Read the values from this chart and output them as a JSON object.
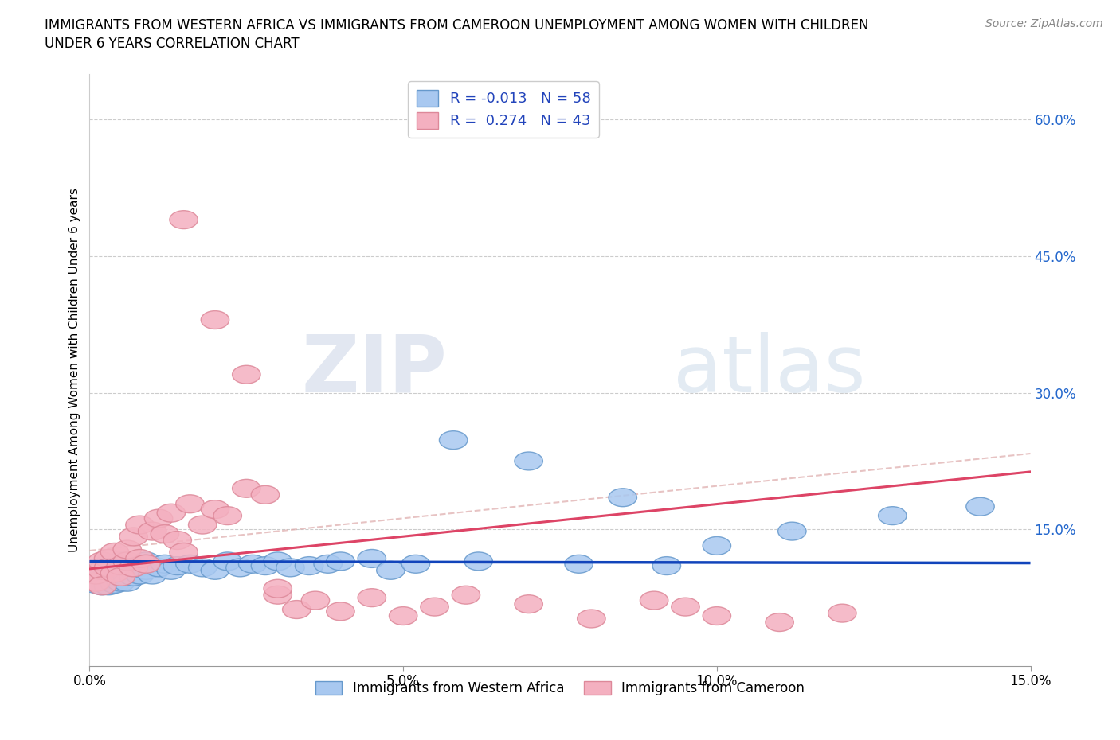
{
  "title_line1": "IMMIGRANTS FROM WESTERN AFRICA VS IMMIGRANTS FROM CAMEROON UNEMPLOYMENT AMONG WOMEN WITH CHILDREN",
  "title_line2": "UNDER 6 YEARS CORRELATION CHART",
  "source": "Source: ZipAtlas.com",
  "ylabel": "Unemployment Among Women with Children Under 6 years",
  "xlim": [
    0.0,
    0.15
  ],
  "ylim": [
    0.0,
    0.65
  ],
  "xticks": [
    0.0,
    0.05,
    0.1,
    0.15
  ],
  "xtick_labels": [
    "0.0%",
    "5.0%",
    "10.0%",
    "15.0%"
  ],
  "ytick_positions": [
    0.15,
    0.3,
    0.45,
    0.6
  ],
  "ytick_labels": [
    "15.0%",
    "30.0%",
    "45.0%",
    "60.0%"
  ],
  "series1_color": "#a8c8f0",
  "series2_color": "#f4b0c0",
  "series1_edge": "#6699cc",
  "series2_edge": "#dd8899",
  "trend1_color": "#1144bb",
  "trend2_color": "#dd4466",
  "trend2_dash_color": "#ddaaaa",
  "R1": -0.013,
  "N1": 58,
  "R2": 0.274,
  "N2": 43,
  "legend_label1": "Immigrants from Western Africa",
  "legend_label2": "Immigrants from Cameroon",
  "watermark": "ZIPatlas",
  "background_color": "#ffffff",
  "grid_color": "#cccccc",
  "wa_x": [
    0.001,
    0.001,
    0.001,
    0.002,
    0.002,
    0.002,
    0.002,
    0.003,
    0.003,
    0.003,
    0.003,
    0.004,
    0.004,
    0.004,
    0.004,
    0.005,
    0.005,
    0.005,
    0.005,
    0.006,
    0.006,
    0.006,
    0.007,
    0.007,
    0.008,
    0.008,
    0.009,
    0.009,
    0.01,
    0.011,
    0.012,
    0.013,
    0.014,
    0.016,
    0.018,
    0.02,
    0.022,
    0.024,
    0.026,
    0.028,
    0.03,
    0.032,
    0.035,
    0.038,
    0.04,
    0.045,
    0.048,
    0.052,
    0.058,
    0.062,
    0.07,
    0.078,
    0.085,
    0.092,
    0.1,
    0.112,
    0.128,
    0.142
  ],
  "wa_y": [
    0.105,
    0.095,
    0.09,
    0.1,
    0.108,
    0.095,
    0.088,
    0.102,
    0.098,
    0.112,
    0.088,
    0.105,
    0.095,
    0.11,
    0.09,
    0.1,
    0.108,
    0.092,
    0.115,
    0.098,
    0.105,
    0.092,
    0.105,
    0.098,
    0.11,
    0.1,
    0.105,
    0.115,
    0.1,
    0.108,
    0.112,
    0.105,
    0.11,
    0.112,
    0.108,
    0.105,
    0.115,
    0.108,
    0.112,
    0.11,
    0.115,
    0.108,
    0.11,
    0.112,
    0.115,
    0.118,
    0.105,
    0.112,
    0.248,
    0.115,
    0.225,
    0.112,
    0.185,
    0.11,
    0.132,
    0.148,
    0.165,
    0.175
  ],
  "cam_x": [
    0.001,
    0.001,
    0.002,
    0.002,
    0.002,
    0.003,
    0.003,
    0.004,
    0.004,
    0.005,
    0.005,
    0.006,
    0.006,
    0.007,
    0.007,
    0.008,
    0.008,
    0.009,
    0.01,
    0.011,
    0.012,
    0.013,
    0.014,
    0.015,
    0.016,
    0.018,
    0.02,
    0.022,
    0.025,
    0.028,
    0.03,
    0.033,
    0.036,
    0.04,
    0.05,
    0.06,
    0.07,
    0.08,
    0.09,
    0.095,
    0.1,
    0.11,
    0.12
  ],
  "cam_y": [
    0.092,
    0.1,
    0.105,
    0.115,
    0.088,
    0.118,
    0.108,
    0.102,
    0.125,
    0.11,
    0.098,
    0.115,
    0.128,
    0.108,
    0.142,
    0.118,
    0.155,
    0.112,
    0.148,
    0.162,
    0.145,
    0.168,
    0.138,
    0.125,
    0.178,
    0.155,
    0.172,
    0.165,
    0.195,
    0.188,
    0.078,
    0.062,
    0.072,
    0.06,
    0.055,
    0.078,
    0.068,
    0.052,
    0.072,
    0.065,
    0.055,
    0.048,
    0.058
  ],
  "cam_high_x": [
    0.015,
    0.02,
    0.025,
    0.03,
    0.045,
    0.055
  ],
  "cam_high_y": [
    0.49,
    0.38,
    0.32,
    0.085,
    0.075,
    0.065
  ]
}
